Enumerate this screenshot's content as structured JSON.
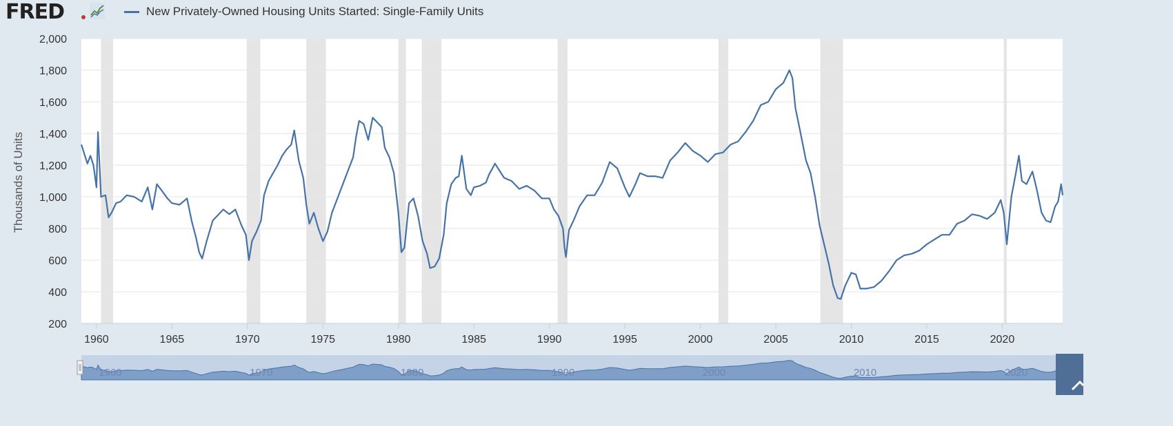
{
  "header": {
    "logo_text": "FRED",
    "legend_label": "New Privately-Owned Housing Units Started: Single-Family Units"
  },
  "colors": {
    "series": "#4572a7",
    "recession": "#e5e5e5",
    "background": "#e1e9f0",
    "plot": "#ffffff",
    "navigator_fill": "#a8bedc"
  },
  "icons": {
    "graph_icon": "line-chart-icon"
  },
  "navigator": {
    "labels": [
      "1960",
      "1970",
      "1980",
      "1990",
      "2000",
      "2010",
      "2020"
    ]
  },
  "chart_data": {
    "type": "line",
    "ylabel": "Thousands of Units",
    "xlabel": "",
    "ylim": [
      200,
      2000
    ],
    "xlim": [
      1959.0,
      2024.0
    ],
    "y_ticks": [
      200,
      400,
      600,
      800,
      1000,
      1200,
      1400,
      1600,
      1800,
      2000
    ],
    "x_ticks": [
      1960,
      1965,
      1970,
      1975,
      1980,
      1985,
      1990,
      1995,
      2000,
      2005,
      2010,
      2015,
      2020
    ],
    "grid": true,
    "legend": "top-left",
    "recessions": [
      [
        1960.3,
        1961.1
      ],
      [
        1969.95,
        1970.85
      ],
      [
        1973.9,
        1975.2
      ],
      [
        1980.0,
        1980.5
      ],
      [
        1981.55,
        1982.85
      ],
      [
        1990.55,
        1991.2
      ],
      [
        2001.2,
        2001.85
      ],
      [
        2007.95,
        2009.45
      ],
      [
        2020.1,
        2020.3
      ]
    ],
    "series": [
      {
        "name": "New Privately-Owned Housing Units Started: Single-Family Units",
        "points": [
          [
            1959.0,
            1330
          ],
          [
            1959.2,
            1270
          ],
          [
            1959.4,
            1210
          ],
          [
            1959.6,
            1260
          ],
          [
            1959.8,
            1200
          ],
          [
            1960.0,
            1060
          ],
          [
            1960.1,
            1410
          ],
          [
            1960.3,
            1000
          ],
          [
            1960.6,
            1010
          ],
          [
            1960.8,
            870
          ],
          [
            1961.0,
            900
          ],
          [
            1961.3,
            960
          ],
          [
            1961.6,
            970
          ],
          [
            1962.0,
            1010
          ],
          [
            1962.5,
            1000
          ],
          [
            1963.0,
            970
          ],
          [
            1963.4,
            1060
          ],
          [
            1963.7,
            920
          ],
          [
            1964.0,
            1080
          ],
          [
            1964.4,
            1030
          ],
          [
            1964.7,
            990
          ],
          [
            1965.0,
            960
          ],
          [
            1965.5,
            950
          ],
          [
            1966.0,
            990
          ],
          [
            1966.3,
            850
          ],
          [
            1966.6,
            740
          ],
          [
            1966.8,
            650
          ],
          [
            1967.0,
            610
          ],
          [
            1967.3,
            720
          ],
          [
            1967.7,
            850
          ],
          [
            1968.0,
            880
          ],
          [
            1968.4,
            920
          ],
          [
            1968.8,
            890
          ],
          [
            1969.2,
            920
          ],
          [
            1969.6,
            820
          ],
          [
            1969.9,
            760
          ],
          [
            1970.1,
            600
          ],
          [
            1970.3,
            720
          ],
          [
            1970.6,
            780
          ],
          [
            1970.9,
            850
          ],
          [
            1971.1,
            1010
          ],
          [
            1971.4,
            1100
          ],
          [
            1971.7,
            1150
          ],
          [
            1972.0,
            1200
          ],
          [
            1972.3,
            1260
          ],
          [
            1972.6,
            1300
          ],
          [
            1972.9,
            1330
          ],
          [
            1973.1,
            1420
          ],
          [
            1973.4,
            1230
          ],
          [
            1973.7,
            1120
          ],
          [
            1973.9,
            950
          ],
          [
            1974.1,
            830
          ],
          [
            1974.4,
            900
          ],
          [
            1974.7,
            800
          ],
          [
            1975.0,
            720
          ],
          [
            1975.3,
            780
          ],
          [
            1975.6,
            900
          ],
          [
            1976.0,
            1000
          ],
          [
            1976.4,
            1100
          ],
          [
            1976.8,
            1200
          ],
          [
            1977.0,
            1250
          ],
          [
            1977.2,
            1380
          ],
          [
            1977.4,
            1480
          ],
          [
            1977.7,
            1460
          ],
          [
            1978.0,
            1360
          ],
          [
            1978.3,
            1500
          ],
          [
            1978.6,
            1470
          ],
          [
            1978.9,
            1440
          ],
          [
            1979.1,
            1310
          ],
          [
            1979.4,
            1250
          ],
          [
            1979.7,
            1150
          ],
          [
            1980.0,
            900
          ],
          [
            1980.2,
            650
          ],
          [
            1980.4,
            680
          ],
          [
            1980.7,
            960
          ],
          [
            1981.0,
            990
          ],
          [
            1981.3,
            880
          ],
          [
            1981.6,
            720
          ],
          [
            1981.9,
            640
          ],
          [
            1982.1,
            550
          ],
          [
            1982.4,
            560
          ],
          [
            1982.7,
            610
          ],
          [
            1983.0,
            760
          ],
          [
            1983.2,
            960
          ],
          [
            1983.5,
            1080
          ],
          [
            1983.8,
            1120
          ],
          [
            1984.0,
            1130
          ],
          [
            1984.2,
            1260
          ],
          [
            1984.5,
            1050
          ],
          [
            1984.8,
            1010
          ],
          [
            1985.0,
            1060
          ],
          [
            1985.4,
            1070
          ],
          [
            1985.8,
            1090
          ],
          [
            1986.0,
            1140
          ],
          [
            1986.4,
            1210
          ],
          [
            1986.8,
            1150
          ],
          [
            1987.0,
            1120
          ],
          [
            1987.5,
            1100
          ],
          [
            1988.0,
            1050
          ],
          [
            1988.5,
            1070
          ],
          [
            1989.0,
            1040
          ],
          [
            1989.5,
            990
          ],
          [
            1990.0,
            990
          ],
          [
            1990.3,
            920
          ],
          [
            1990.6,
            880
          ],
          [
            1990.9,
            800
          ],
          [
            1991.0,
            680
          ],
          [
            1991.1,
            620
          ],
          [
            1991.3,
            790
          ],
          [
            1991.6,
            850
          ],
          [
            1992.0,
            940
          ],
          [
            1992.5,
            1010
          ],
          [
            1993.0,
            1010
          ],
          [
            1993.5,
            1090
          ],
          [
            1994.0,
            1220
          ],
          [
            1994.5,
            1180
          ],
          [
            1995.0,
            1060
          ],
          [
            1995.3,
            1000
          ],
          [
            1995.7,
            1080
          ],
          [
            1996.0,
            1150
          ],
          [
            1996.5,
            1130
          ],
          [
            1997.0,
            1130
          ],
          [
            1997.5,
            1120
          ],
          [
            1998.0,
            1230
          ],
          [
            1998.5,
            1280
          ],
          [
            1999.0,
            1340
          ],
          [
            1999.5,
            1290
          ],
          [
            2000.0,
            1260
          ],
          [
            2000.5,
            1220
          ],
          [
            2001.0,
            1270
          ],
          [
            2001.5,
            1280
          ],
          [
            2002.0,
            1330
          ],
          [
            2002.5,
            1350
          ],
          [
            2003.0,
            1410
          ],
          [
            2003.5,
            1480
          ],
          [
            2004.0,
            1580
          ],
          [
            2004.5,
            1600
          ],
          [
            2005.0,
            1680
          ],
          [
            2005.5,
            1720
          ],
          [
            2005.9,
            1800
          ],
          [
            2006.1,
            1750
          ],
          [
            2006.3,
            1560
          ],
          [
            2006.6,
            1420
          ],
          [
            2007.0,
            1230
          ],
          [
            2007.3,
            1150
          ],
          [
            2007.6,
            1000
          ],
          [
            2007.9,
            820
          ],
          [
            2008.2,
            700
          ],
          [
            2008.5,
            580
          ],
          [
            2008.8,
            440
          ],
          [
            2009.1,
            360
          ],
          [
            2009.3,
            355
          ],
          [
            2009.6,
            440
          ],
          [
            2010.0,
            520
          ],
          [
            2010.3,
            510
          ],
          [
            2010.6,
            420
          ],
          [
            2011.0,
            420
          ],
          [
            2011.5,
            430
          ],
          [
            2012.0,
            470
          ],
          [
            2012.5,
            530
          ],
          [
            2013.0,
            600
          ],
          [
            2013.5,
            630
          ],
          [
            2014.0,
            640
          ],
          [
            2014.5,
            660
          ],
          [
            2015.0,
            700
          ],
          [
            2015.5,
            730
          ],
          [
            2016.0,
            760
          ],
          [
            2016.5,
            760
          ],
          [
            2017.0,
            830
          ],
          [
            2017.5,
            850
          ],
          [
            2018.0,
            890
          ],
          [
            2018.5,
            880
          ],
          [
            2019.0,
            860
          ],
          [
            2019.5,
            900
          ],
          [
            2019.9,
            980
          ],
          [
            2020.1,
            900
          ],
          [
            2020.3,
            700
          ],
          [
            2020.6,
            1000
          ],
          [
            2020.9,
            1150
          ],
          [
            2021.1,
            1260
          ],
          [
            2021.3,
            1100
          ],
          [
            2021.6,
            1080
          ],
          [
            2022.0,
            1160
          ],
          [
            2022.3,
            1040
          ],
          [
            2022.6,
            900
          ],
          [
            2022.9,
            850
          ],
          [
            2023.2,
            840
          ],
          [
            2023.5,
            940
          ],
          [
            2023.7,
            970
          ],
          [
            2023.9,
            1080
          ],
          [
            2024.0,
            1010
          ]
        ]
      }
    ]
  }
}
